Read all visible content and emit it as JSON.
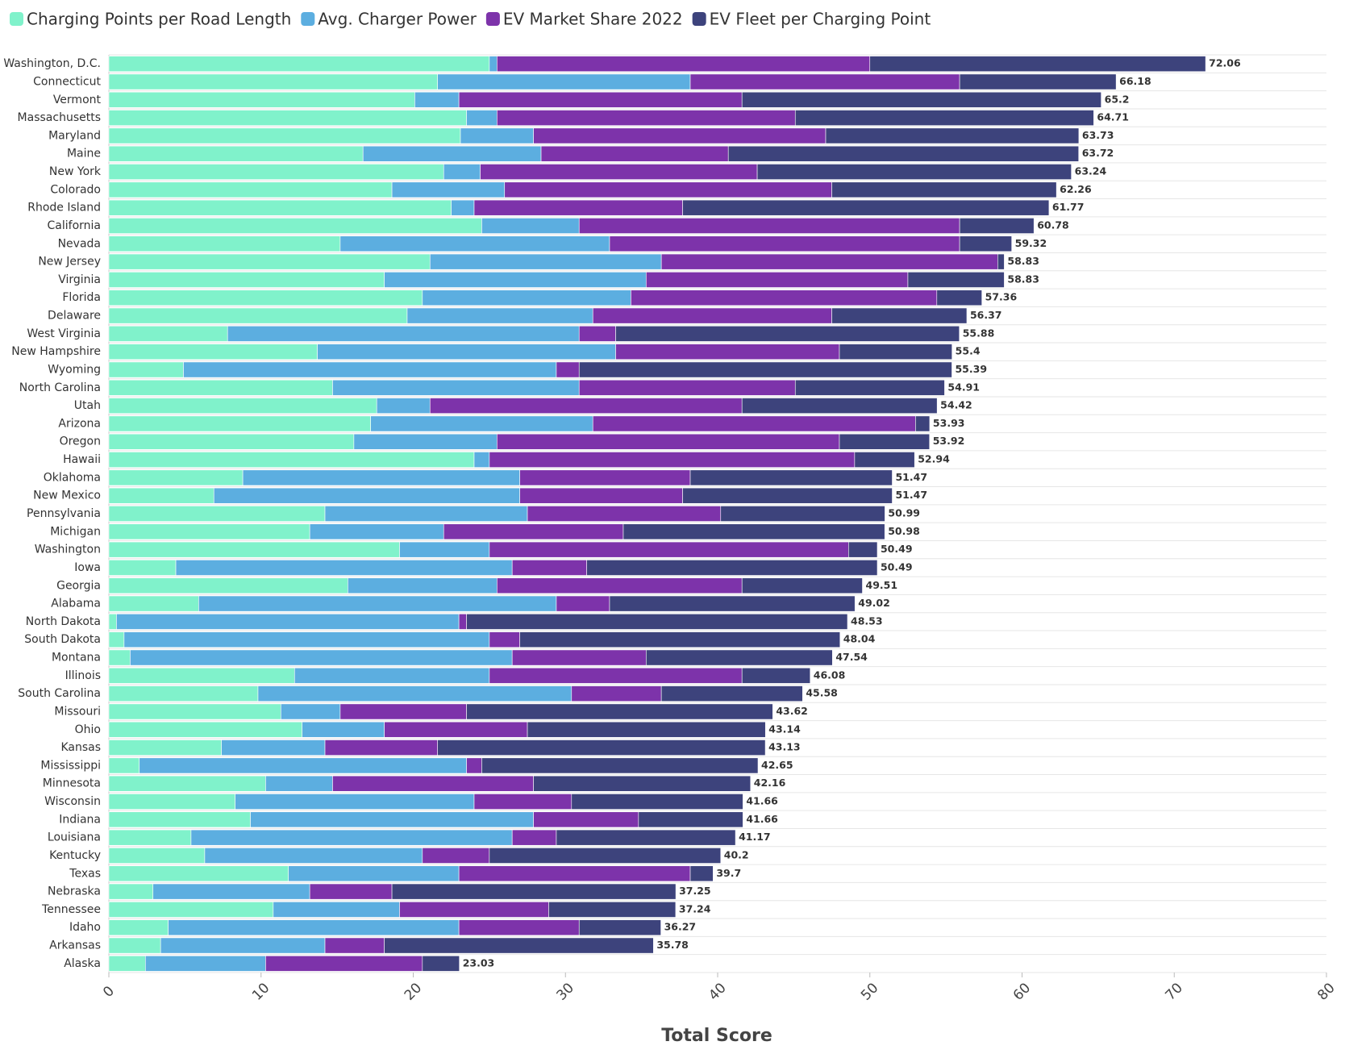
{
  "chart_data": {
    "type": "stacked-bar-horizontal",
    "x_label": "Total Score",
    "categories": [
      "Washington, D.C.",
      "Connecticut",
      "Vermont",
      "Massachusetts",
      "Maryland",
      "Maine",
      "New York",
      "Colorado",
      "Rhode Island",
      "California",
      "Nevada",
      "New Jersey",
      "Virginia",
      "Florida",
      "Delaware",
      "West Virginia",
      "New Hampshire",
      "Wyoming",
      "North Carolina",
      "Utah",
      "Arizona",
      "Oregon",
      "Hawaii",
      "Oklahoma",
      "New Mexico",
      "Pennsylvania",
      "Michigan",
      "Washington",
      "Iowa",
      "Georgia",
      "Alabama",
      "North Dakota",
      "South Dakota",
      "Montana",
      "Illinois",
      "South Carolina",
      "Missouri",
      "Ohio",
      "Kansas",
      "Mississippi",
      "Minnesota",
      "Wisconsin",
      "Indiana",
      "Louisiana",
      "Kentucky",
      "Texas",
      "Nebraska",
      "Tennessee",
      "Idaho",
      "Arkansas",
      "Alaska"
    ],
    "series": [
      {
        "name": "Charging Points per Road Length",
        "color": "#80f2cb",
        "values": [
          25.0,
          21.6,
          20.1,
          23.5,
          23.1,
          16.7,
          22.0,
          18.6,
          22.5,
          24.5,
          15.2,
          21.1,
          18.1,
          20.6,
          19.6,
          7.8,
          13.7,
          4.9,
          14.7,
          17.6,
          17.2,
          16.1,
          24.0,
          8.8,
          6.9,
          14.2,
          13.2,
          19.1,
          4.4,
          15.7,
          5.9,
          0.5,
          1.0,
          1.4,
          12.2,
          9.8,
          11.3,
          12.7,
          7.4,
          2.0,
          10.3,
          8.3,
          9.3,
          5.4,
          6.3,
          11.8,
          2.9,
          10.8,
          3.9,
          3.4,
          2.4
        ]
      },
      {
        "name": "Avg. Charger Power",
        "color": "#5caee0",
        "values": [
          0.5,
          16.6,
          2.9,
          2.0,
          4.8,
          11.7,
          2.4,
          7.4,
          1.5,
          6.4,
          17.7,
          15.2,
          17.2,
          13.7,
          12.2,
          23.1,
          19.6,
          24.5,
          16.2,
          3.5,
          14.6,
          9.4,
          1.0,
          18.2,
          20.1,
          13.3,
          8.8,
          5.9,
          22.1,
          9.8,
          23.5,
          22.5,
          24.0,
          25.1,
          12.8,
          20.6,
          3.9,
          5.4,
          6.8,
          21.5,
          4.4,
          15.7,
          18.6,
          21.1,
          14.3,
          11.2,
          10.3,
          8.3,
          19.1,
          10.8,
          7.9
        ]
      },
      {
        "name": "EV Market Share 2022",
        "color": "#7d33aa",
        "values": [
          24.5,
          17.7,
          18.6,
          19.6,
          19.2,
          12.3,
          18.2,
          21.5,
          13.7,
          25.0,
          23.0,
          22.1,
          17.2,
          20.1,
          15.7,
          2.4,
          14.7,
          1.5,
          14.2,
          20.5,
          21.2,
          22.5,
          24.0,
          11.2,
          10.7,
          12.7,
          11.8,
          23.6,
          4.9,
          16.1,
          3.5,
          0.5,
          2.0,
          8.8,
          16.6,
          5.9,
          8.3,
          9.4,
          7.4,
          1.0,
          13.2,
          6.4,
          6.9,
          2.9,
          4.4,
          15.2,
          5.4,
          9.8,
          7.9,
          3.9,
          10.3
        ]
      },
      {
        "name": "EV Fleet per Charging Point",
        "color": "#3d437c",
        "values": [
          22.06,
          10.28,
          23.6,
          19.61,
          16.63,
          23.02,
          20.64,
          14.76,
          24.07,
          4.88,
          3.42,
          0.43,
          6.33,
          2.96,
          8.87,
          22.58,
          7.4,
          24.49,
          9.81,
          12.82,
          0.93,
          5.92,
          3.94,
          13.27,
          13.77,
          10.79,
          17.18,
          1.89,
          19.09,
          7.91,
          16.12,
          25.03,
          21.04,
          12.24,
          4.48,
          9.28,
          20.12,
          15.64,
          21.53,
          18.15,
          14.26,
          11.26,
          6.86,
          11.77,
          15.2,
          1.5,
          18.65,
          8.34,
          5.37,
          17.68,
          2.43
        ]
      }
    ],
    "totals": [
      72.06,
      66.18,
      65.2,
      64.71,
      63.73,
      63.72,
      63.24,
      62.26,
      61.77,
      60.78,
      59.32,
      58.83,
      58.83,
      57.36,
      56.37,
      55.88,
      55.4,
      55.39,
      54.91,
      54.42,
      53.93,
      53.92,
      52.94,
      51.47,
      51.47,
      50.99,
      50.98,
      50.49,
      50.49,
      49.51,
      49.02,
      48.53,
      48.04,
      47.54,
      46.08,
      45.58,
      43.62,
      43.14,
      43.13,
      42.65,
      42.16,
      41.66,
      41.66,
      41.17,
      40.2,
      39.7,
      37.25,
      37.24,
      36.27,
      35.78,
      23.03
    ],
    "xlim": [
      0,
      80
    ],
    "xticks": [
      0,
      10,
      20,
      30,
      40,
      50,
      60,
      70,
      80
    ],
    "legend": "top-left",
    "grid": true
  }
}
